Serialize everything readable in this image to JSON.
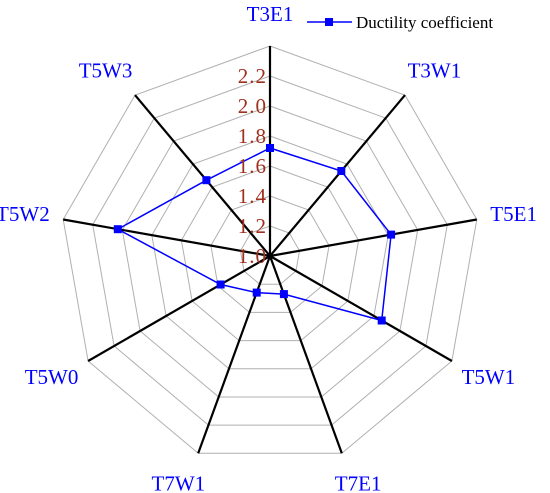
{
  "chart_data": {
    "type": "radar",
    "categories": [
      "T3E1",
      "T3W1",
      "T5E1",
      "T5W1",
      "T7E1",
      "T7W1",
      "T5W0",
      "T5W2",
      "T5W3"
    ],
    "series": [
      {
        "name": "Ductility coefficient",
        "values": [
          1.72,
          1.74,
          1.82,
          1.86,
          1.27,
          1.26,
          1.38,
          2.03,
          1.66
        ],
        "color": "#0000ff",
        "marker": "square"
      }
    ],
    "radial_ticks": [
      "1.0",
      "1.2",
      "1.4",
      "1.6",
      "1.8",
      "2.0",
      "2.2"
    ],
    "rlim": [
      1.0,
      2.4
    ],
    "grid": true,
    "legend_position": "top-right",
    "colors": {
      "category_label": "#0000ff",
      "tick_label": "#a0301e",
      "grid": "#b0b0b0",
      "spoke": "#000000"
    }
  }
}
